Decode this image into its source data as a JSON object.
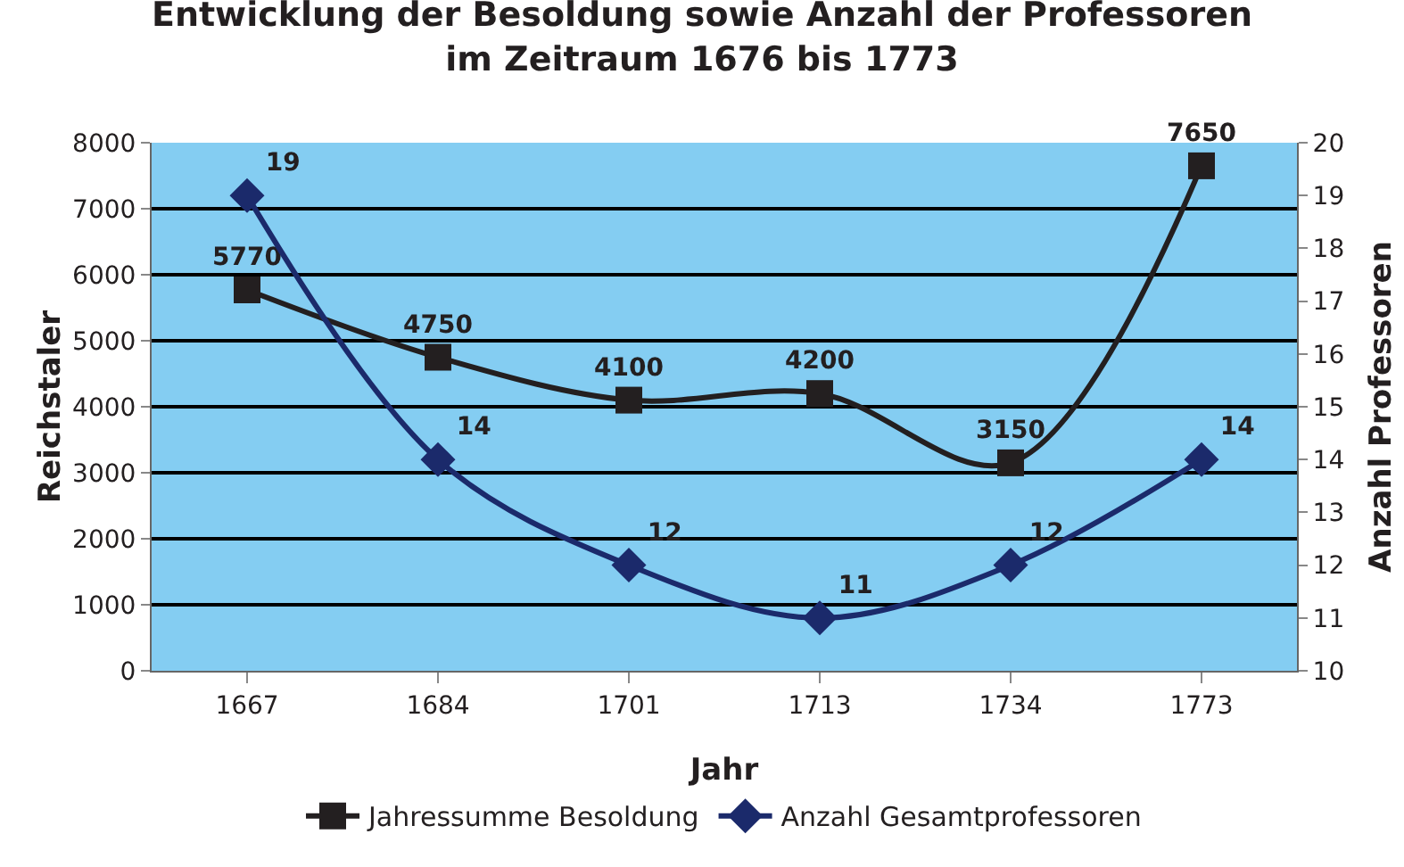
{
  "chart_data": {
    "type": "line",
    "title": "Entwicklung der Besoldung sowie Anzahl der Professoren\nim Zeitraum 1676 bis 1773",
    "xlabel": "Jahr",
    "ylabel": "Reichstaler",
    "y2label": "Anzahl Professoren",
    "categories": [
      "1667",
      "1684",
      "1701",
      "1713",
      "1734",
      "1773"
    ],
    "series": [
      {
        "name": "Jahressumme Besoldung",
        "color": "#231f20",
        "marker": "square",
        "values": [
          5770,
          4750,
          4100,
          4200,
          3150,
          7650
        ]
      },
      {
        "name": "Anzahl Gesamtprofessoren",
        "color": "#1b2a6b",
        "marker": "diamond",
        "axis": "y2",
        "values": [
          19,
          14,
          12,
          11,
          12,
          14
        ]
      }
    ],
    "ylim": [
      0,
      8000
    ],
    "yticks": [
      0,
      1000,
      2000,
      3000,
      4000,
      5000,
      6000,
      7000,
      8000
    ],
    "y2lim": [
      10,
      20
    ],
    "y2ticks": [
      10,
      11,
      12,
      13,
      14,
      15,
      16,
      17,
      18,
      19,
      20
    ],
    "grid": "y",
    "legend": "bottom",
    "data_labels": true
  }
}
